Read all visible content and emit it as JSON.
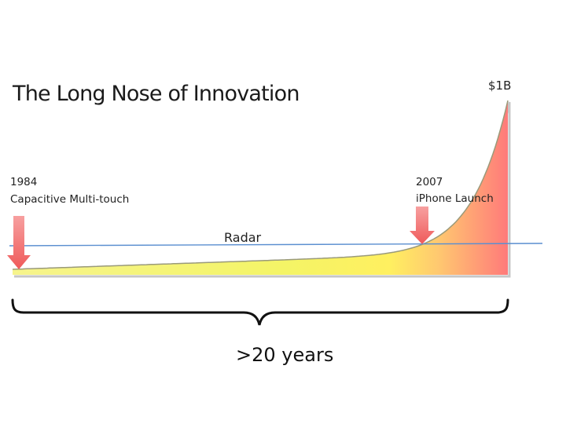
{
  "chart_data": {
    "type": "area",
    "title": "The Long Nose of Innovation",
    "peak_label": "$1B",
    "threshold_line": {
      "label": "Radar"
    },
    "markers": [
      {
        "year": "1984",
        "label": "Capacitive Multi-touch"
      },
      {
        "year": "2007",
        "label": "iPhone Launch"
      }
    ],
    "span_label": ">20 years",
    "curve": "exponential",
    "colors": {
      "fill_low": "#f4f46a",
      "fill_mid": "#ffd36b",
      "fill_high": "#ff7f7f",
      "edge": "#8a8a6a",
      "radar_line": "#5b8fd0",
      "arrow": "#f26b6b",
      "brace": "#111111"
    }
  }
}
